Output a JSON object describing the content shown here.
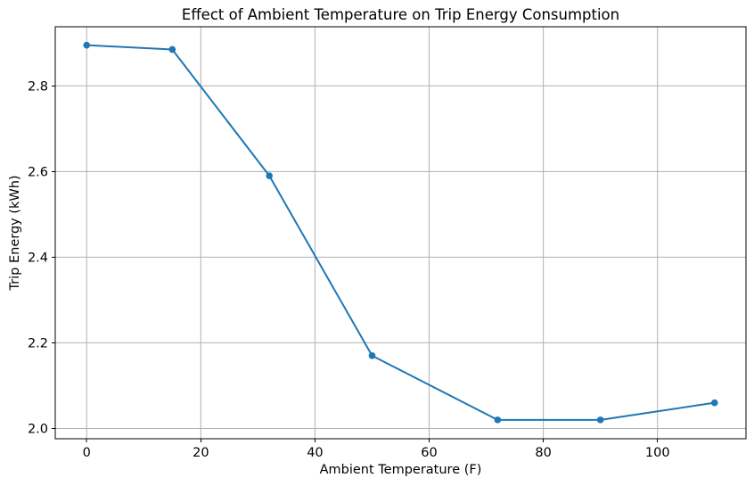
{
  "chart_data": {
    "type": "line",
    "title": "Effect of Ambient Temperature on Trip Energy Consumption",
    "xlabel": "Ambient Temperature (F)",
    "ylabel": "Trip Energy (kWh)",
    "series": [
      {
        "name": "Trip Energy",
        "x": [
          0,
          15,
          32,
          50,
          72,
          90,
          110
        ],
        "y": [
          2.895,
          2.885,
          2.59,
          2.17,
          2.02,
          2.02,
          2.06
        ]
      }
    ],
    "xlim": [
      -5.5,
      115.5
    ],
    "ylim": [
      1.976,
      2.938
    ],
    "xticks": [
      0,
      20,
      40,
      60,
      80,
      100
    ],
    "xtick_labels": [
      "0",
      "20",
      "40",
      "60",
      "80",
      "100"
    ],
    "yticks": [
      2.0,
      2.2,
      2.4,
      2.6,
      2.8
    ],
    "ytick_labels": [
      "2.0",
      "2.2",
      "2.4",
      "2.6",
      "2.8"
    ],
    "grid": true,
    "legend": "none",
    "marker": "circle",
    "colors": {
      "line": "#1f77b4",
      "marker": "#1f77b4",
      "grid": "#b0b0b0",
      "spine": "#000000",
      "text": "#000000",
      "background": "#ffffff"
    }
  }
}
